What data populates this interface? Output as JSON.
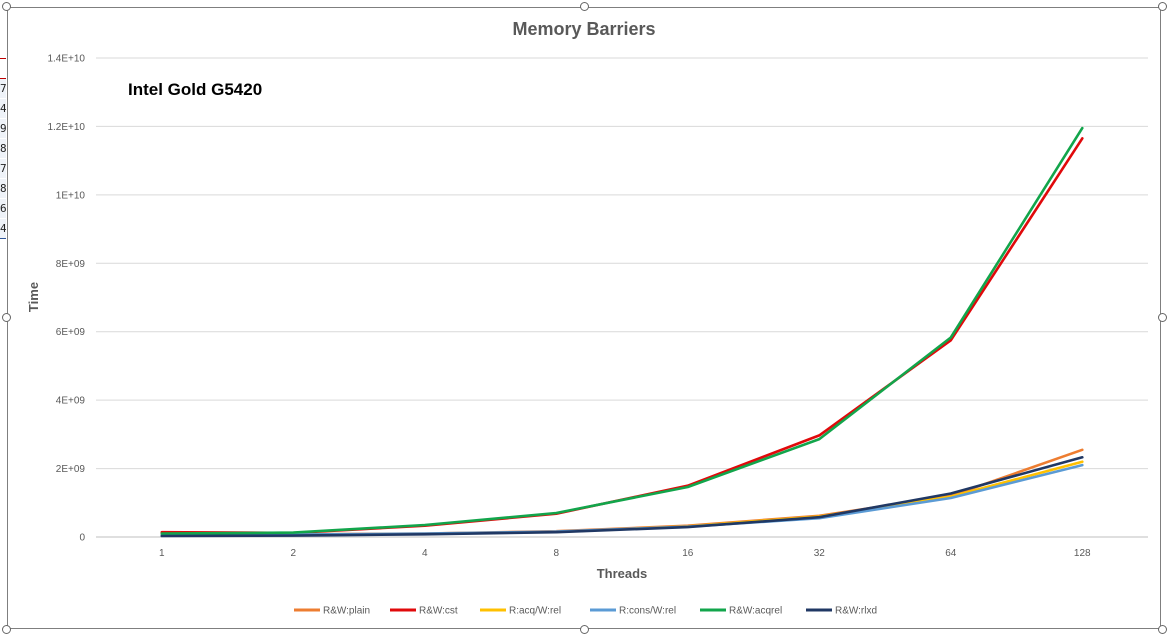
{
  "sheet_rows": [
    "7",
    "4",
    "9",
    "8",
    "7",
    "8",
    "6",
    "4"
  ],
  "chart_data": {
    "type": "line",
    "title": "Memory Barriers",
    "annotation": "Intel Gold G5420",
    "xlabel": "Threads",
    "ylabel": "Time",
    "categories": [
      "1",
      "2",
      "4",
      "8",
      "16",
      "32",
      "64",
      "128"
    ],
    "ylim": [
      0,
      14000000000
    ],
    "yticks": [
      0,
      2000000000,
      4000000000,
      6000000000,
      8000000000,
      10000000000,
      12000000000,
      14000000000
    ],
    "ytick_labels": [
      "0",
      "2E+09",
      "4E+09",
      "6E+09",
      "8E+09",
      "1E+10",
      "1.2E+10",
      "1.4E+10"
    ],
    "grid": true,
    "legend_position": "bottom",
    "series": [
      {
        "name": "R&W:plain",
        "color": "#ed7d31",
        "values": [
          120000000,
          80000000,
          100000000,
          170000000,
          330000000,
          620000000,
          1200000000,
          2550000000
        ]
      },
      {
        "name": "R&W:cst",
        "color": "#e0090b",
        "values": [
          140000000,
          120000000,
          330000000,
          680000000,
          1500000000,
          2970000000,
          5750000000,
          11650000000
        ]
      },
      {
        "name": "R:acq/W:rel",
        "color": "#ffc000",
        "values": [
          50000000,
          60000000,
          90000000,
          150000000,
          310000000,
          600000000,
          1180000000,
          2200000000
        ]
      },
      {
        "name": "R:cons/W:rel",
        "color": "#5b9bd5",
        "values": [
          60000000,
          70000000,
          100000000,
          160000000,
          300000000,
          550000000,
          1140000000,
          2100000000
        ]
      },
      {
        "name": "R&W:acqrel",
        "color": "#12a54b",
        "values": [
          100000000,
          130000000,
          350000000,
          700000000,
          1460000000,
          2860000000,
          5830000000,
          11950000000
        ]
      },
      {
        "name": "R&W:rlxd",
        "color": "#203864",
        "values": [
          30000000,
          40000000,
          80000000,
          140000000,
          290000000,
          580000000,
          1270000000,
          2330000000
        ]
      }
    ]
  }
}
